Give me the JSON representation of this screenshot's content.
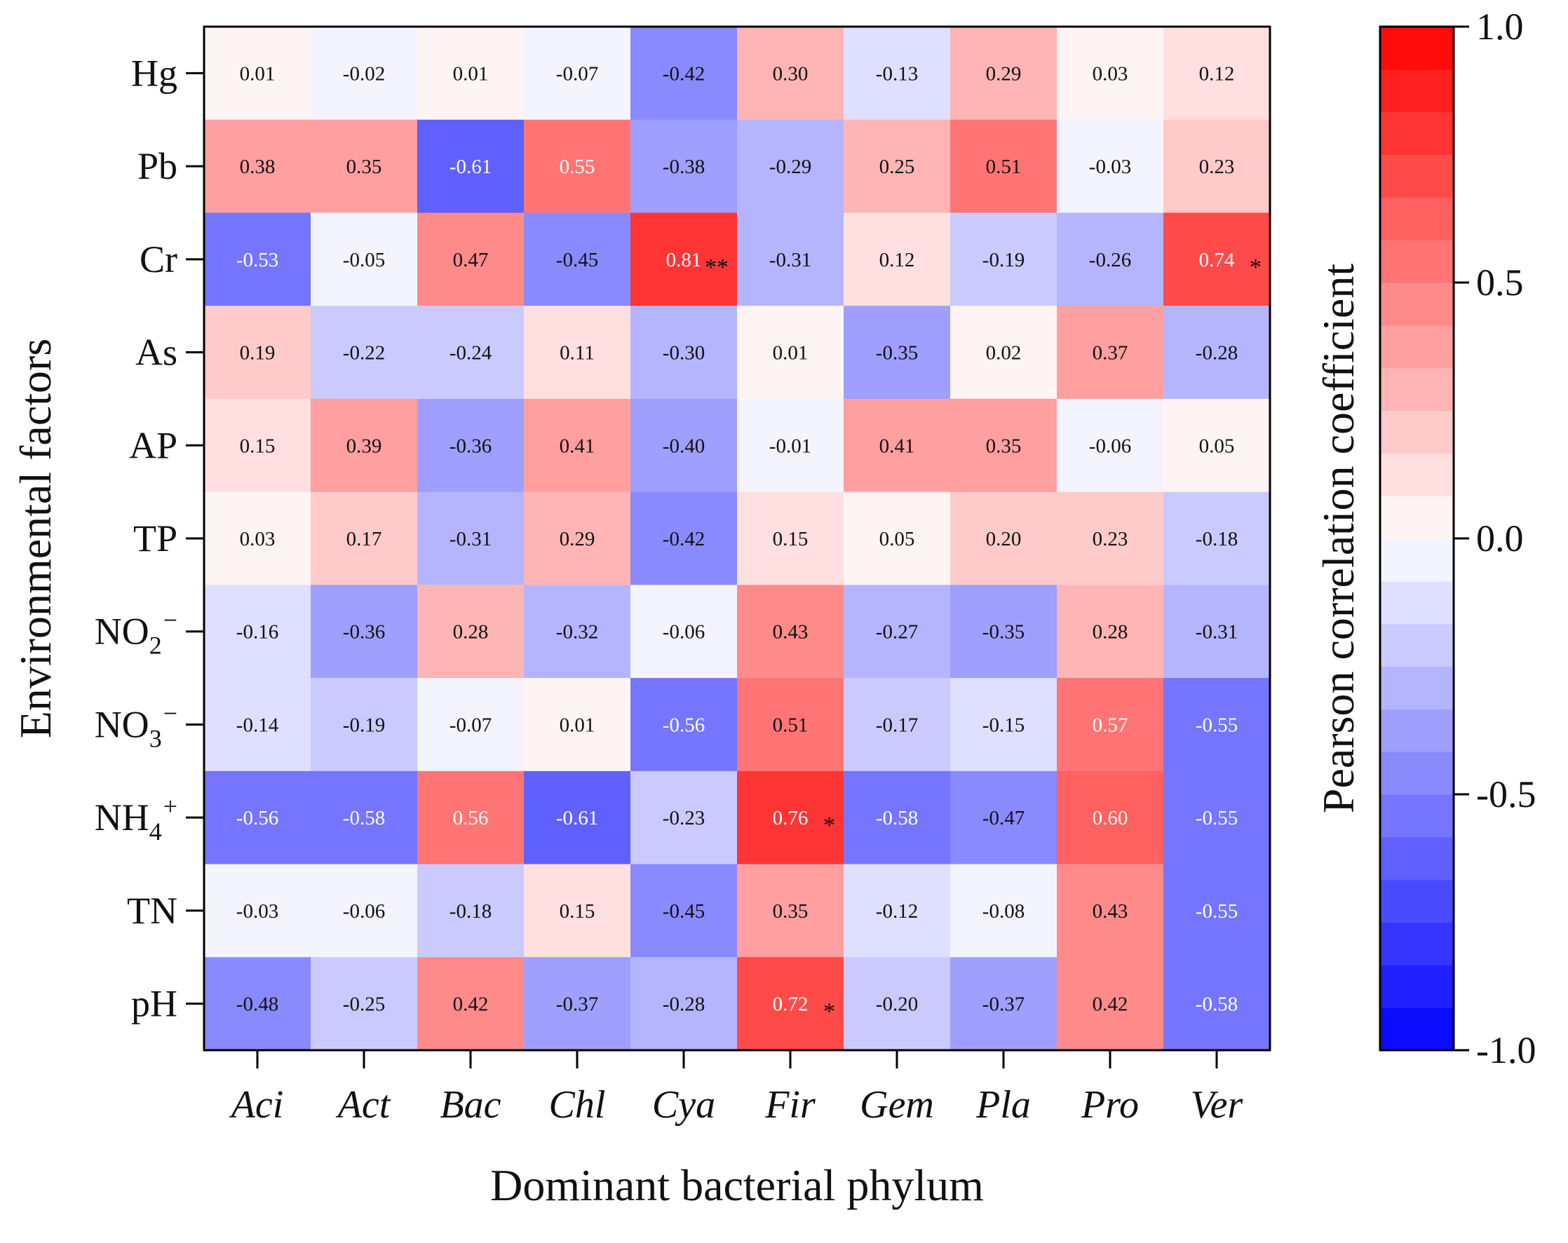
{
  "chart_data": {
    "type": "heatmap",
    "xlabel": "Dominant bacterial phylum",
    "ylabel": "Environmental factors",
    "columns": [
      "Aci",
      "Act",
      "Bac",
      "Chl",
      "Cya",
      "Fir",
      "Gem",
      "Pla",
      "Pro",
      "Ver"
    ],
    "rows": [
      {
        "label": "Hg",
        "sub": "",
        "sup": ""
      },
      {
        "label": "Pb",
        "sub": "",
        "sup": ""
      },
      {
        "label": "Cr",
        "sub": "",
        "sup": ""
      },
      {
        "label": "As",
        "sub": "",
        "sup": ""
      },
      {
        "label": "AP",
        "sub": "",
        "sup": ""
      },
      {
        "label": "TP",
        "sub": "",
        "sup": ""
      },
      {
        "label": "NO",
        "sub": "2",
        "sup": "−"
      },
      {
        "label": "NO",
        "sub": "3",
        "sup": "−"
      },
      {
        "label": "NH",
        "sub": "4",
        "sup": "+"
      },
      {
        "label": "TN",
        "sub": "",
        "sup": ""
      },
      {
        "label": "pH",
        "sub": "",
        "sup": ""
      }
    ],
    "values": [
      [
        0.01,
        -0.02,
        0.01,
        -0.07,
        -0.42,
        0.3,
        -0.13,
        0.29,
        0.03,
        0.12
      ],
      [
        0.38,
        0.35,
        -0.61,
        0.55,
        -0.38,
        -0.29,
        0.25,
        0.51,
        -0.03,
        0.23
      ],
      [
        -0.53,
        -0.05,
        0.47,
        -0.45,
        0.81,
        -0.31,
        0.12,
        -0.19,
        -0.26,
        0.74
      ],
      [
        0.19,
        -0.22,
        -0.24,
        0.11,
        -0.3,
        0.01,
        -0.35,
        0.02,
        0.37,
        -0.28
      ],
      [
        0.15,
        0.39,
        -0.36,
        0.41,
        -0.4,
        -0.01,
        0.41,
        0.35,
        -0.06,
        0.05
      ],
      [
        0.03,
        0.17,
        -0.31,
        0.29,
        -0.42,
        0.15,
        0.05,
        0.2,
        0.23,
        -0.18
      ],
      [
        -0.16,
        -0.36,
        0.28,
        -0.32,
        -0.06,
        0.43,
        -0.27,
        -0.35,
        0.28,
        -0.31
      ],
      [
        -0.14,
        -0.19,
        -0.07,
        0.01,
        -0.56,
        0.51,
        -0.17,
        -0.15,
        0.57,
        -0.55
      ],
      [
        -0.56,
        -0.58,
        0.56,
        -0.61,
        -0.23,
        0.76,
        -0.58,
        -0.47,
        0.6,
        -0.55
      ],
      [
        -0.03,
        -0.06,
        -0.18,
        0.15,
        -0.45,
        0.35,
        -0.12,
        -0.08,
        0.43,
        -0.55
      ],
      [
        -0.48,
        -0.25,
        0.42,
        -0.37,
        -0.28,
        0.72,
        -0.2,
        -0.37,
        0.42,
        -0.58
      ]
    ],
    "significance": [
      {
        "row": 2,
        "col": 4,
        "mark": "**"
      },
      {
        "row": 2,
        "col": 9,
        "mark": "*"
      },
      {
        "row": 8,
        "col": 5,
        "mark": "*"
      },
      {
        "row": 10,
        "col": 5,
        "mark": "*"
      }
    ],
    "colorbar": {
      "title": "Pearson correlation coefficient",
      "range": [
        -1.0,
        1.0
      ],
      "ticks": [
        "1.0",
        "0.5",
        "0.0",
        "-0.5",
        "-1.0"
      ],
      "tick_values": [
        1.0,
        0.5,
        0.0,
        -0.5,
        -1.0
      ],
      "steps": 24,
      "low_color": "#0000ff",
      "mid_color": "#ffffff",
      "high_color": "#ff0000"
    }
  }
}
